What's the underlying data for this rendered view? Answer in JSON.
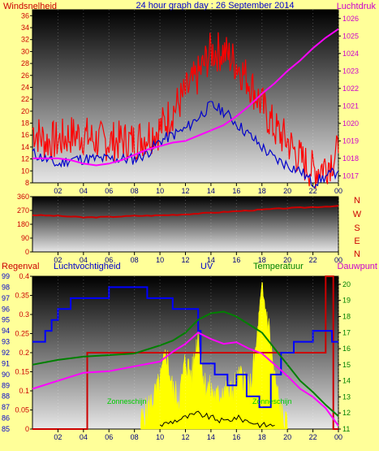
{
  "colors": {
    "page_bg": "#FFFF99",
    "wind": "#FF0000",
    "gust_avg": "#0000CC",
    "pressure": "#FF00FF",
    "direction": "#CC0000",
    "humidity": "#0000FF",
    "uv": "#FFFF00",
    "temperature": "#008000",
    "dewpoint": "#FF00FF",
    "rain": "#CC0000",
    "solar": "#000000"
  },
  "panel1": {
    "title": "24 hour graph day : 26 September 2014",
    "left_label": "Windsnelheid",
    "right_label": "Luchtdruk"
  },
  "panel2": {
    "dir_letters": [
      "N",
      "W",
      "S",
      "E",
      "N"
    ]
  },
  "panel3": {
    "labels": {
      "rain": "Regenval",
      "humidity": "Luchtvochtigheid",
      "uv": "UV",
      "temperature": "Temperatuur",
      "dewpoint": "Dauwpunt"
    },
    "green_annotations": [
      "Zonneschijn",
      "Zonneschijn"
    ]
  },
  "chart_data": [
    {
      "type": "line",
      "title": "24 hour graph day : 26 September 2014",
      "x_ticks": [
        "02",
        "04",
        "06",
        "08",
        "10",
        "12",
        "14",
        "16",
        "18",
        "20",
        "22",
        "00"
      ],
      "left_axis": {
        "label": "Windsnelheid",
        "ticks": [
          "8",
          "10",
          "12",
          "14",
          "16",
          "18",
          "20",
          "22",
          "24",
          "26",
          "28",
          "30",
          "32",
          "34",
          "36"
        ],
        "ylim": [
          8,
          37
        ]
      },
      "right_axis": {
        "label": "Luchtdruk",
        "ticks": [
          "1017",
          "1018",
          "1019",
          "1020",
          "1021",
          "1022",
          "1023",
          "1024",
          "1025",
          "1026"
        ],
        "ylim": [
          1016.6,
          1026.5
        ]
      },
      "x": [
        0,
        1,
        2,
        3,
        4,
        5,
        6,
        7,
        8,
        9,
        10,
        11,
        12,
        13,
        14,
        15,
        16,
        17,
        18,
        19,
        20,
        21,
        22,
        23,
        24
      ],
      "series": [
        {
          "name": "Windsnelheid",
          "axis": "left",
          "values": [
            17,
            15,
            15,
            16,
            16,
            15,
            15,
            15,
            15,
            16,
            17,
            20,
            23,
            26,
            30,
            30,
            28,
            25,
            21,
            17,
            15,
            12,
            10,
            11,
            13
          ]
        },
        {
          "name": "Gemiddelde",
          "axis": "left",
          "values": [
            13,
            12,
            11,
            12,
            12,
            12,
            12,
            12,
            12,
            13,
            15,
            16,
            17,
            19,
            21,
            20,
            18,
            16,
            14,
            12,
            11,
            10,
            8,
            9,
            10
          ]
        },
        {
          "name": "Luchtdruk",
          "axis": "right",
          "values": [
            1018.0,
            1018.0,
            1018.0,
            1017.9,
            1017.7,
            1017.6,
            1017.7,
            1017.9,
            1018.2,
            1018.5,
            1018.7,
            1018.9,
            1019.0,
            1019.3,
            1019.6,
            1019.9,
            1020.4,
            1021.0,
            1021.7,
            1022.3,
            1023.0,
            1023.6,
            1024.3,
            1024.9,
            1025.4
          ]
        }
      ]
    },
    {
      "type": "line",
      "y_ticks": [
        "0",
        "90",
        "180",
        "270",
        "360"
      ],
      "ylim": [
        0,
        360
      ],
      "x": [
        0,
        2,
        4,
        6,
        8,
        10,
        12,
        14,
        16,
        18,
        20,
        22,
        24
      ],
      "series": [
        {
          "name": "Windrichting",
          "values": [
            240,
            235,
            225,
            228,
            235,
            238,
            245,
            255,
            265,
            275,
            285,
            292,
            300
          ]
        }
      ]
    },
    {
      "type": "line",
      "axes": {
        "rain": {
          "label": "Regenval",
          "ticks": [
            "0",
            "0.05",
            "0.1",
            "0.15",
            "0.2",
            "0.25",
            "0.3",
            "0.35",
            "0.4"
          ],
          "ylim": [
            0,
            0.4
          ]
        },
        "humidity": {
          "label": "Luchtvochtigheid",
          "ticks": [
            "85",
            "86",
            "87",
            "88",
            "89",
            "90",
            "91",
            "92",
            "93",
            "94",
            "95",
            "96",
            "97",
            "98",
            "99"
          ],
          "ylim": [
            85,
            99
          ]
        },
        "temperature": {
          "label": "Temperatuur",
          "ticks": [
            "11",
            "12",
            "13",
            "14",
            "15",
            "16",
            "17",
            "18",
            "19",
            "20"
          ],
          "ylim": [
            11,
            20.5
          ]
        }
      },
      "series": [
        {
          "name": "Luchtvochtigheid",
          "axis": "humidity",
          "x": [
            0,
            1.0,
            1.0,
            1.5,
            1.5,
            2.0,
            2.0,
            3.0,
            3.0,
            6.0,
            6.0,
            9.0,
            9.0,
            11.0,
            11.0,
            13.0,
            13.0,
            13.2,
            13.2,
            14.3,
            14.3,
            15.3,
            15.3,
            16.0,
            16.0,
            16.8,
            16.8,
            17.8,
            17.8,
            18.7,
            18.7,
            19.5,
            19.5,
            20.5,
            20.5,
            22.0,
            22.0,
            23.5,
            23.5,
            24.0
          ],
          "values": [
            93,
            93,
            94,
            94,
            95,
            95,
            96,
            96,
            97,
            97,
            98,
            98,
            97,
            97,
            96,
            96,
            94,
            94,
            91,
            91,
            90,
            90,
            89,
            89,
            90,
            90,
            88,
            88,
            87,
            87,
            90,
            90,
            92,
            92,
            93,
            93,
            94,
            94,
            93,
            93
          ]
        },
        {
          "name": "Temperatuur",
          "axis": "temperature",
          "x": [
            0,
            2,
            4,
            6,
            8,
            10,
            11,
            12,
            13,
            14,
            15,
            16,
            17,
            18,
            19,
            20,
            21,
            22,
            23,
            24
          ],
          "values": [
            15.0,
            15.3,
            15.5,
            15.6,
            15.7,
            16.2,
            16.5,
            17.0,
            17.8,
            18.2,
            18.3,
            18.0,
            17.5,
            17.0,
            16.0,
            15.0,
            14.0,
            13.3,
            12.5,
            11.8
          ]
        },
        {
          "name": "Dauwpunt",
          "axis": "temperature",
          "x": [
            0,
            2,
            4,
            6,
            8,
            10,
            11,
            12,
            13,
            14,
            15,
            16,
            17,
            18,
            19,
            20,
            21,
            22,
            23,
            24
          ],
          "values": [
            13.5,
            14.0,
            14.5,
            14.6,
            14.9,
            15.2,
            15.8,
            16.3,
            17.0,
            16.6,
            16.3,
            16.4,
            16.0,
            15.7,
            15.0,
            14.3,
            13.5,
            13.0,
            12.3,
            11.2
          ]
        },
        {
          "name": "Regenval",
          "axis": "rain",
          "x": [
            0,
            4.3,
            4.3,
            23.0,
            23.0,
            23.6,
            23.6,
            24.0
          ],
          "values": [
            0,
            0,
            0.2,
            0.2,
            0.4,
            0.4,
            0,
            0
          ]
        },
        {
          "name": "UV",
          "axis": "rain",
          "type": "area",
          "x": [
            8.5,
            9.0,
            9.5,
            10.0,
            10.5,
            11.0,
            11.5,
            12.0,
            12.5,
            13.0,
            13.5,
            14.0,
            14.5,
            15.0,
            15.5,
            16.0,
            16.5,
            17.0,
            17.5,
            18.0,
            18.5,
            19.0,
            19.5,
            20.0
          ],
          "values": [
            0.02,
            0.05,
            0.08,
            0.12,
            0.2,
            0.1,
            0.08,
            0.18,
            0.14,
            0.25,
            0.12,
            0.1,
            0.08,
            0.11,
            0.09,
            0.12,
            0.14,
            0.09,
            0.2,
            0.36,
            0.28,
            0.13,
            0.04,
            0.0
          ]
        },
        {
          "name": "Zonneschijn",
          "axis": "rain",
          "x": [
            10,
            11,
            12,
            13,
            14,
            15,
            16,
            17,
            18,
            19
          ],
          "values": [
            0.01,
            0.02,
            0.03,
            0.04,
            0.03,
            0.02,
            0.03,
            0.02,
            0.01,
            0.01
          ]
        }
      ],
      "x_ticks": [
        "02",
        "04",
        "06",
        "08",
        "10",
        "12",
        "14",
        "16",
        "18",
        "20",
        "22",
        "00"
      ]
    }
  ]
}
